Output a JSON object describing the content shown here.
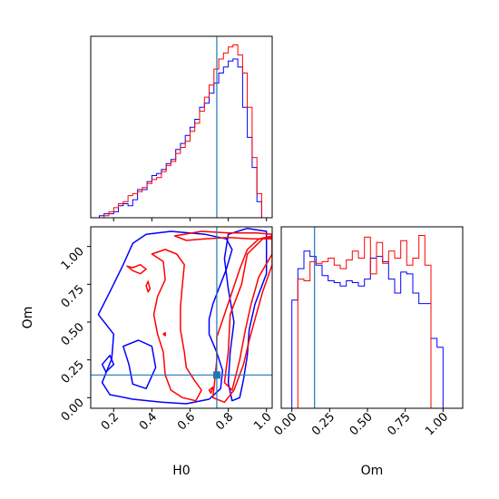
{
  "chart_data": [
    {
      "id": "h0_marginal",
      "type": "line",
      "subtype": "step-histogram",
      "xlabel": "",
      "xlim": [
        0.08,
        1.03
      ],
      "bin_edges": [
        0.1,
        0.125,
        0.15,
        0.175,
        0.2,
        0.225,
        0.25,
        0.275,
        0.3,
        0.325,
        0.35,
        0.375,
        0.4,
        0.425,
        0.45,
        0.475,
        0.5,
        0.525,
        0.55,
        0.575,
        0.6,
        0.625,
        0.65,
        0.675,
        0.7,
        0.725,
        0.75,
        0.775,
        0.8,
        0.825,
        0.85,
        0.875,
        0.9,
        0.925,
        0.95,
        0.975,
        1.0
      ],
      "series": [
        {
          "color": "#0000ff",
          "values": [
            0,
            0.01,
            0.02,
            0.02,
            0.03,
            0.06,
            0.07,
            0.06,
            0.09,
            0.14,
            0.14,
            0.18,
            0.21,
            0.22,
            0.24,
            0.27,
            0.29,
            0.34,
            0.37,
            0.41,
            0.45,
            0.49,
            0.55,
            0.57,
            0.62,
            0.67,
            0.72,
            0.75,
            0.78,
            0.79,
            0.75,
            0.55,
            0.4,
            0.25,
            0.08,
            0
          ]
        },
        {
          "color": "#ff0000",
          "values": [
            0,
            0,
            0.01,
            0.03,
            0.05,
            0.07,
            0.08,
            0.11,
            0.12,
            0.13,
            0.15,
            0.17,
            0.19,
            0.2,
            0.23,
            0.26,
            0.28,
            0.32,
            0.35,
            0.38,
            0.43,
            0.47,
            0.53,
            0.6,
            0.66,
            0.74,
            0.79,
            0.82,
            0.85,
            0.86,
            0.81,
            0.72,
            0.55,
            0.3,
            0.12,
            0
          ]
        }
      ],
      "truth_line_x": 0.74,
      "x_ticks": [
        0.2,
        0.4,
        0.6,
        0.8,
        1.0
      ]
    },
    {
      "id": "joint_h0_om",
      "type": "line",
      "subtype": "contour",
      "xlabel": "H0",
      "ylabel": "Om",
      "xlim": [
        0.08,
        1.03
      ],
      "ylim": [
        -0.07,
        1.13
      ],
      "x_tick_labels": [
        "0.2",
        "0.4",
        "0.6",
        "0.8",
        "1.0"
      ],
      "x_ticks": [
        0.2,
        0.4,
        0.6,
        0.8,
        1.0
      ],
      "y_tick_labels": [
        "0.00",
        "0.25",
        "0.50",
        "0.75",
        "1.00"
      ],
      "y_ticks": [
        0.0,
        0.25,
        0.5,
        0.75,
        1.0
      ],
      "truth_point": [
        0.74,
        0.15
      ],
      "series": [
        {
          "color": "#0000ff",
          "contours": [
            [
              [
                0.37,
                1.08
              ],
              [
                0.5,
                1.1
              ],
              [
                0.68,
                1.08
              ],
              [
                0.79,
                1.05
              ],
              [
                0.82,
                0.98
              ],
              [
                0.79,
                0.85
              ],
              [
                0.75,
                0.72
              ],
              [
                0.72,
                0.62
              ],
              [
                0.7,
                0.52
              ],
              [
                0.7,
                0.42
              ],
              [
                0.74,
                0.3
              ],
              [
                0.77,
                0.18
              ],
              [
                0.76,
                0.06
              ],
              [
                0.7,
                -0.01
              ],
              [
                0.58,
                -0.04
              ],
              [
                0.45,
                -0.03
              ],
              [
                0.3,
                -0.01
              ],
              [
                0.18,
                0.02
              ],
              [
                0.14,
                0.1
              ],
              [
                0.19,
                0.26
              ],
              [
                0.2,
                0.42
              ],
              [
                0.12,
                0.55
              ],
              [
                0.18,
                0.7
              ],
              [
                0.25,
                0.88
              ],
              [
                0.3,
                1.02
              ],
              [
                0.37,
                1.08
              ]
            ],
            [
              [
                0.8,
                1.08
              ],
              [
                0.9,
                1.12
              ],
              [
                1.0,
                1.1
              ],
              [
                1.0,
                0.82
              ],
              [
                0.94,
                0.62
              ],
              [
                0.91,
                0.45
              ],
              [
                0.9,
                0.28
              ],
              [
                0.88,
                0.12
              ],
              [
                0.86,
                0.0
              ],
              [
                0.82,
                -0.02
              ],
              [
                0.8,
                0.1
              ],
              [
                0.81,
                0.3
              ],
              [
                0.83,
                0.5
              ],
              [
                0.8,
                0.72
              ],
              [
                0.78,
                0.92
              ],
              [
                0.8,
                1.08
              ]
            ],
            [
              [
                0.25,
                0.34
              ],
              [
                0.33,
                0.38
              ],
              [
                0.4,
                0.34
              ],
              [
                0.42,
                0.2
              ],
              [
                0.37,
                0.06
              ],
              [
                0.3,
                0.09
              ],
              [
                0.28,
                0.22
              ],
              [
                0.25,
                0.34
              ]
            ],
            [
              [
                0.14,
                0.22
              ],
              [
                0.18,
                0.28
              ],
              [
                0.2,
                0.22
              ],
              [
                0.16,
                0.17
              ],
              [
                0.14,
                0.22
              ]
            ]
          ]
        },
        {
          "color": "#ff0000",
          "contours": [
            [
              [
                0.52,
                1.07
              ],
              [
                0.66,
                1.1
              ],
              [
                0.8,
                1.09
              ],
              [
                0.95,
                1.09
              ],
              [
                1.03,
                1.08
              ],
              [
                1.03,
                1.05
              ],
              [
                0.92,
                1.05
              ],
              [
                0.8,
                1.06
              ],
              [
                0.68,
                1.05
              ],
              [
                0.58,
                1.04
              ],
              [
                0.52,
                1.07
              ]
            ],
            [
              [
                0.4,
                0.95
              ],
              [
                0.46,
                0.9
              ],
              [
                0.47,
                0.78
              ],
              [
                0.43,
                0.67
              ],
              [
                0.41,
                0.55
              ],
              [
                0.43,
                0.42
              ],
              [
                0.46,
                0.3
              ],
              [
                0.47,
                0.15
              ],
              [
                0.5,
                0.05
              ],
              [
                0.56,
                0.0
              ],
              [
                0.63,
                -0.02
              ],
              [
                0.66,
                0.05
              ],
              [
                0.62,
                0.12
              ],
              [
                0.58,
                0.2
              ],
              [
                0.57,
                0.3
              ],
              [
                0.55,
                0.45
              ],
              [
                0.55,
                0.6
              ],
              [
                0.56,
                0.75
              ],
              [
                0.57,
                0.88
              ],
              [
                0.53,
                0.95
              ],
              [
                0.47,
                0.98
              ],
              [
                0.4,
                0.95
              ]
            ],
            [
              [
                0.74,
                0.4
              ],
              [
                0.78,
                0.55
              ],
              [
                0.82,
                0.7
              ],
              [
                0.86,
                0.85
              ],
              [
                0.9,
                0.98
              ],
              [
                0.96,
                1.05
              ],
              [
                1.03,
                1.07
              ],
              [
                1.03,
                0.88
              ],
              [
                0.98,
                0.7
              ],
              [
                0.94,
                0.52
              ],
              [
                0.91,
                0.38
              ],
              [
                0.88,
                0.22
              ],
              [
                0.83,
                0.05
              ],
              [
                0.78,
                -0.03
              ],
              [
                0.72,
                0.0
              ],
              [
                0.73,
                0.12
              ],
              [
                0.74,
                0.25
              ],
              [
                0.74,
                0.4
              ]
            ],
            [
              [
                0.81,
                0.55
              ],
              [
                0.87,
                0.75
              ],
              [
                0.9,
                0.95
              ],
              [
                0.98,
                1.05
              ],
              [
                1.03,
                1.06
              ],
              [
                1.03,
                0.95
              ],
              [
                0.96,
                0.8
              ],
              [
                0.92,
                0.62
              ],
              [
                0.89,
                0.45
              ],
              [
                0.86,
                0.25
              ],
              [
                0.82,
                0.05
              ],
              [
                0.78,
                0.1
              ],
              [
                0.8,
                0.3
              ],
              [
                0.81,
                0.55
              ]
            ],
            [
              [
                0.27,
                0.87
              ],
              [
                0.3,
                0.86
              ],
              [
                0.34,
                0.88
              ],
              [
                0.37,
                0.85
              ],
              [
                0.34,
                0.82
              ],
              [
                0.3,
                0.84
              ],
              [
                0.27,
                0.87
              ]
            ],
            [
              [
                0.38,
                0.77
              ],
              [
                0.39,
                0.72
              ],
              [
                0.38,
                0.7
              ],
              [
                0.37,
                0.74
              ],
              [
                0.38,
                0.77
              ]
            ],
            [
              [
                0.7,
                0.05
              ],
              [
                0.72,
                0.07
              ],
              [
                0.71,
                0.03
              ],
              [
                0.7,
                0.05
              ]
            ],
            [
              [
                0.46,
                0.42
              ],
              [
                0.47,
                0.43
              ],
              [
                0.47,
                0.41
              ],
              [
                0.46,
                0.42
              ]
            ]
          ]
        }
      ]
    },
    {
      "id": "om_marginal",
      "type": "line",
      "subtype": "step-histogram",
      "xlabel": "Om",
      "xlim": [
        -0.07,
        1.13
      ],
      "x_tick_labels": [
        "0.00",
        "0.25",
        "0.50",
        "0.75",
        "1.00"
      ],
      "x_ticks": [
        0.0,
        0.25,
        0.5,
        0.75,
        1.0
      ],
      "bin_edges": [
        -0.04,
        0.0,
        0.04,
        0.08,
        0.12,
        0.16,
        0.2,
        0.24,
        0.28,
        0.32,
        0.36,
        0.4,
        0.44,
        0.48,
        0.52,
        0.56,
        0.6,
        0.64,
        0.68,
        0.72,
        0.76,
        0.8,
        0.84,
        0.88,
        0.92,
        0.96,
        1.0,
        1.04
      ],
      "series": [
        {
          "color": "#0000ff",
          "values": [
            0.0,
            0.62,
            0.8,
            0.9,
            0.87,
            0.82,
            0.76,
            0.73,
            0.72,
            0.7,
            0.73,
            0.72,
            0.7,
            0.74,
            0.86,
            0.87,
            0.84,
            0.74,
            0.66,
            0.78,
            0.77,
            0.66,
            0.6,
            0.6,
            0.4,
            0.35,
            0.0
          ]
        },
        {
          "color": "#ff0000",
          "values": [
            0.0,
            0.0,
            0.74,
            0.73,
            0.84,
            0.83,
            0.84,
            0.86,
            0.82,
            0.8,
            0.85,
            0.9,
            0.86,
            0.98,
            0.77,
            0.95,
            0.83,
            0.9,
            0.86,
            0.96,
            0.82,
            0.86,
            0.99,
            0.82,
            0.0,
            0.0,
            0.0
          ]
        }
      ],
      "truth_line_x": 0.15
    }
  ]
}
